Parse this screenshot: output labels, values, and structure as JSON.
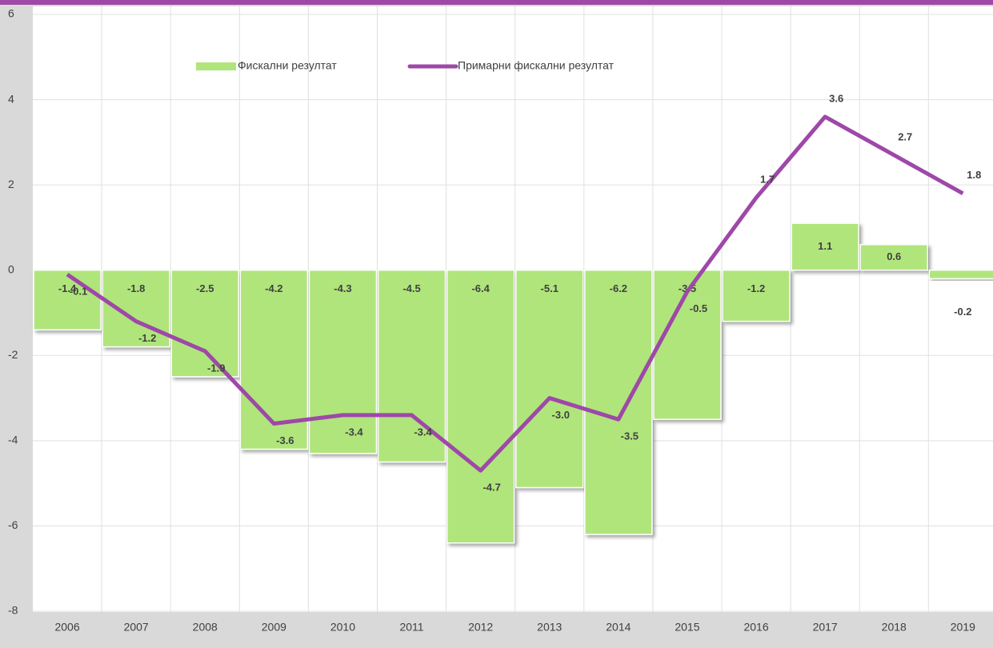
{
  "chart_data": {
    "type": "bar",
    "categories": [
      "2006",
      "2007",
      "2008",
      "2009",
      "2010",
      "2011",
      "2012",
      "2013",
      "2014",
      "2015",
      "2016",
      "2017",
      "2018",
      "2019"
    ],
    "series": [
      {
        "name": "Фискални резултат",
        "type": "bar",
        "color": "#b0e57c",
        "values": [
          -1.4,
          -1.8,
          -2.5,
          -4.2,
          -4.3,
          -4.5,
          -6.4,
          -5.1,
          -6.2,
          -3.5,
          -1.2,
          1.1,
          0.6,
          -0.2
        ]
      },
      {
        "name": "Примарни фискални резултат",
        "type": "line",
        "color": "#9e48a8",
        "values": [
          -0.1,
          -1.2,
          -1.9,
          -3.6,
          -3.4,
          -3.4,
          -4.7,
          -3.0,
          -3.5,
          -0.5,
          1.7,
          3.6,
          2.7,
          1.8
        ],
        "value_labels": [
          "-0.1",
          "-1.2",
          "-1.9",
          "-3.6",
          "-3.4",
          "-3.4",
          "-4.7",
          "-3.0",
          "-3.5",
          "-0.5",
          "1.7",
          "3.6",
          "2.7",
          "1.8"
        ]
      }
    ],
    "ylim": [
      -8,
      6
    ],
    "yticks": [
      -8,
      -6,
      -4,
      -2,
      0,
      2,
      4,
      6
    ],
    "grid": true,
    "legend": "top"
  }
}
